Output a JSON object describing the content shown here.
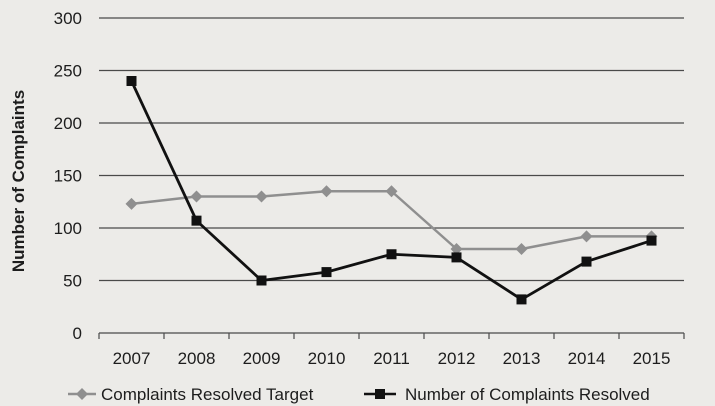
{
  "chart_data": {
    "type": "line",
    "title": "",
    "xlabel": "",
    "ylabel": "Number of Complaints",
    "categories": [
      "2007",
      "2008",
      "2009",
      "2010",
      "2011",
      "2012",
      "2013",
      "2014",
      "2015"
    ],
    "ylim": [
      0,
      300
    ],
    "yticks": [
      0,
      50,
      100,
      150,
      200,
      250,
      300
    ],
    "grid": "horizontal",
    "legend_position": "bottom",
    "series": [
      {
        "name": "Complaints Resolved Target",
        "marker": "diamond",
        "color": "#8f8f8f",
        "values": [
          123,
          130,
          130,
          135,
          135,
          80,
          80,
          92,
          92
        ]
      },
      {
        "name": "Number of Complaints Resolved",
        "marker": "square",
        "color": "#111111",
        "values": [
          240,
          107,
          50,
          58,
          75,
          72,
          32,
          68,
          88
        ]
      }
    ]
  }
}
